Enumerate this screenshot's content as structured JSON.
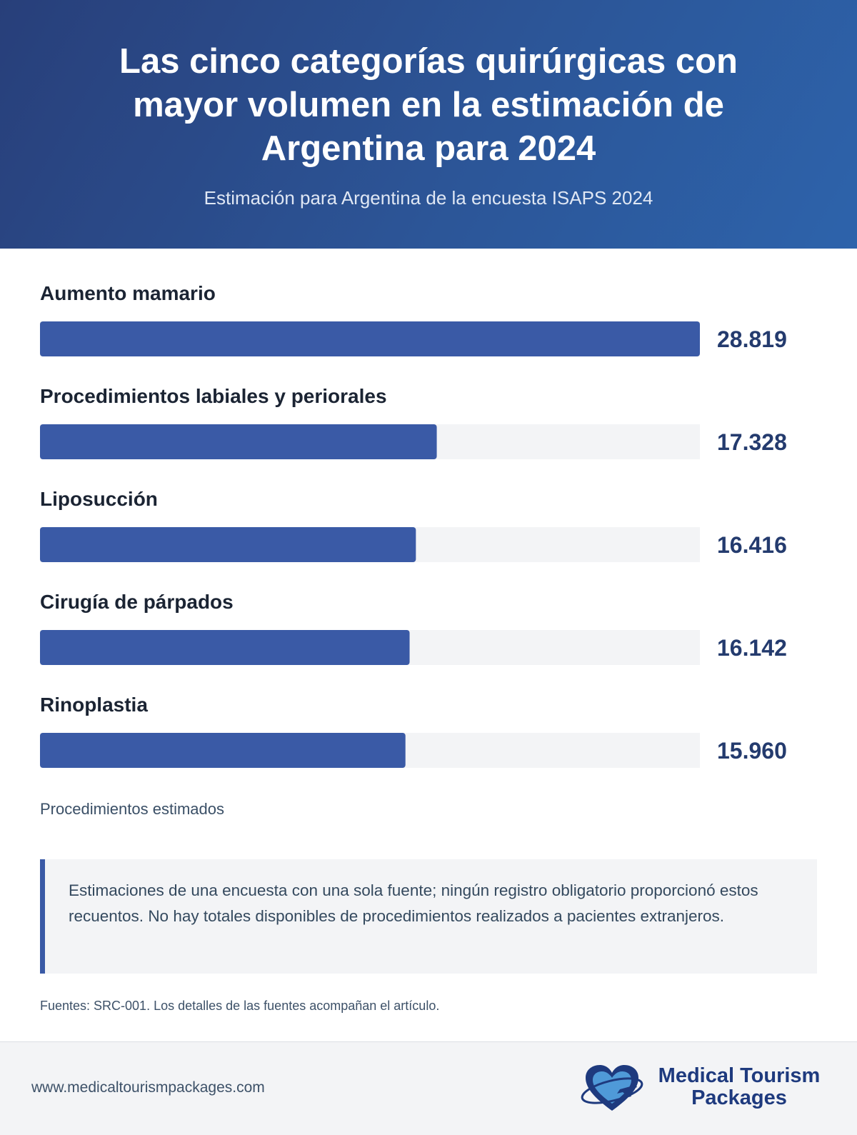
{
  "header": {
    "title": "Las cinco categorías quirúrgicas con mayor volumen en la estimación de Argentina para 2024",
    "subtitle": "Estimación para Argentina de la encuesta ISAPS 2024"
  },
  "chart_data": {
    "type": "bar",
    "orientation": "horizontal",
    "categories": [
      "Aumento mamario",
      "Procedimientos labiales y periorales",
      "Liposucción",
      "Cirugía de párpados",
      "Rinoplastia"
    ],
    "values": [
      28819,
      17328,
      16416,
      16142,
      15960
    ],
    "value_labels": [
      "28.819",
      "17.328",
      "16.416",
      "16.142",
      "15.960"
    ],
    "xlabel": "Procedimientos estimados",
    "xlim": [
      0,
      28819
    ],
    "grid": false,
    "bar_color": "#3a5aa6",
    "track_color": "#f3f4f6",
    "label_color": "#1b2433",
    "value_color": "#243b6e"
  },
  "note": "Estimaciones de una encuesta con una sola fuente; ningún registro obligatorio proporcionó estos recuentos. No hay totales disponibles de procedimientos realizados a pacientes extranjeros.",
  "sources": "Fuentes: SRC-001. Los detalles de las fuentes acompañan el artículo.",
  "footer": {
    "url": "www.medicaltourismpackages.com",
    "logo_line1": "Medical Tourism",
    "logo_line2": "Packages"
  },
  "colors": {
    "header_start": "#283f7a",
    "header_end": "#2d63ab",
    "accent": "#3a5aa6",
    "logo_text": "#1e3a7e"
  }
}
